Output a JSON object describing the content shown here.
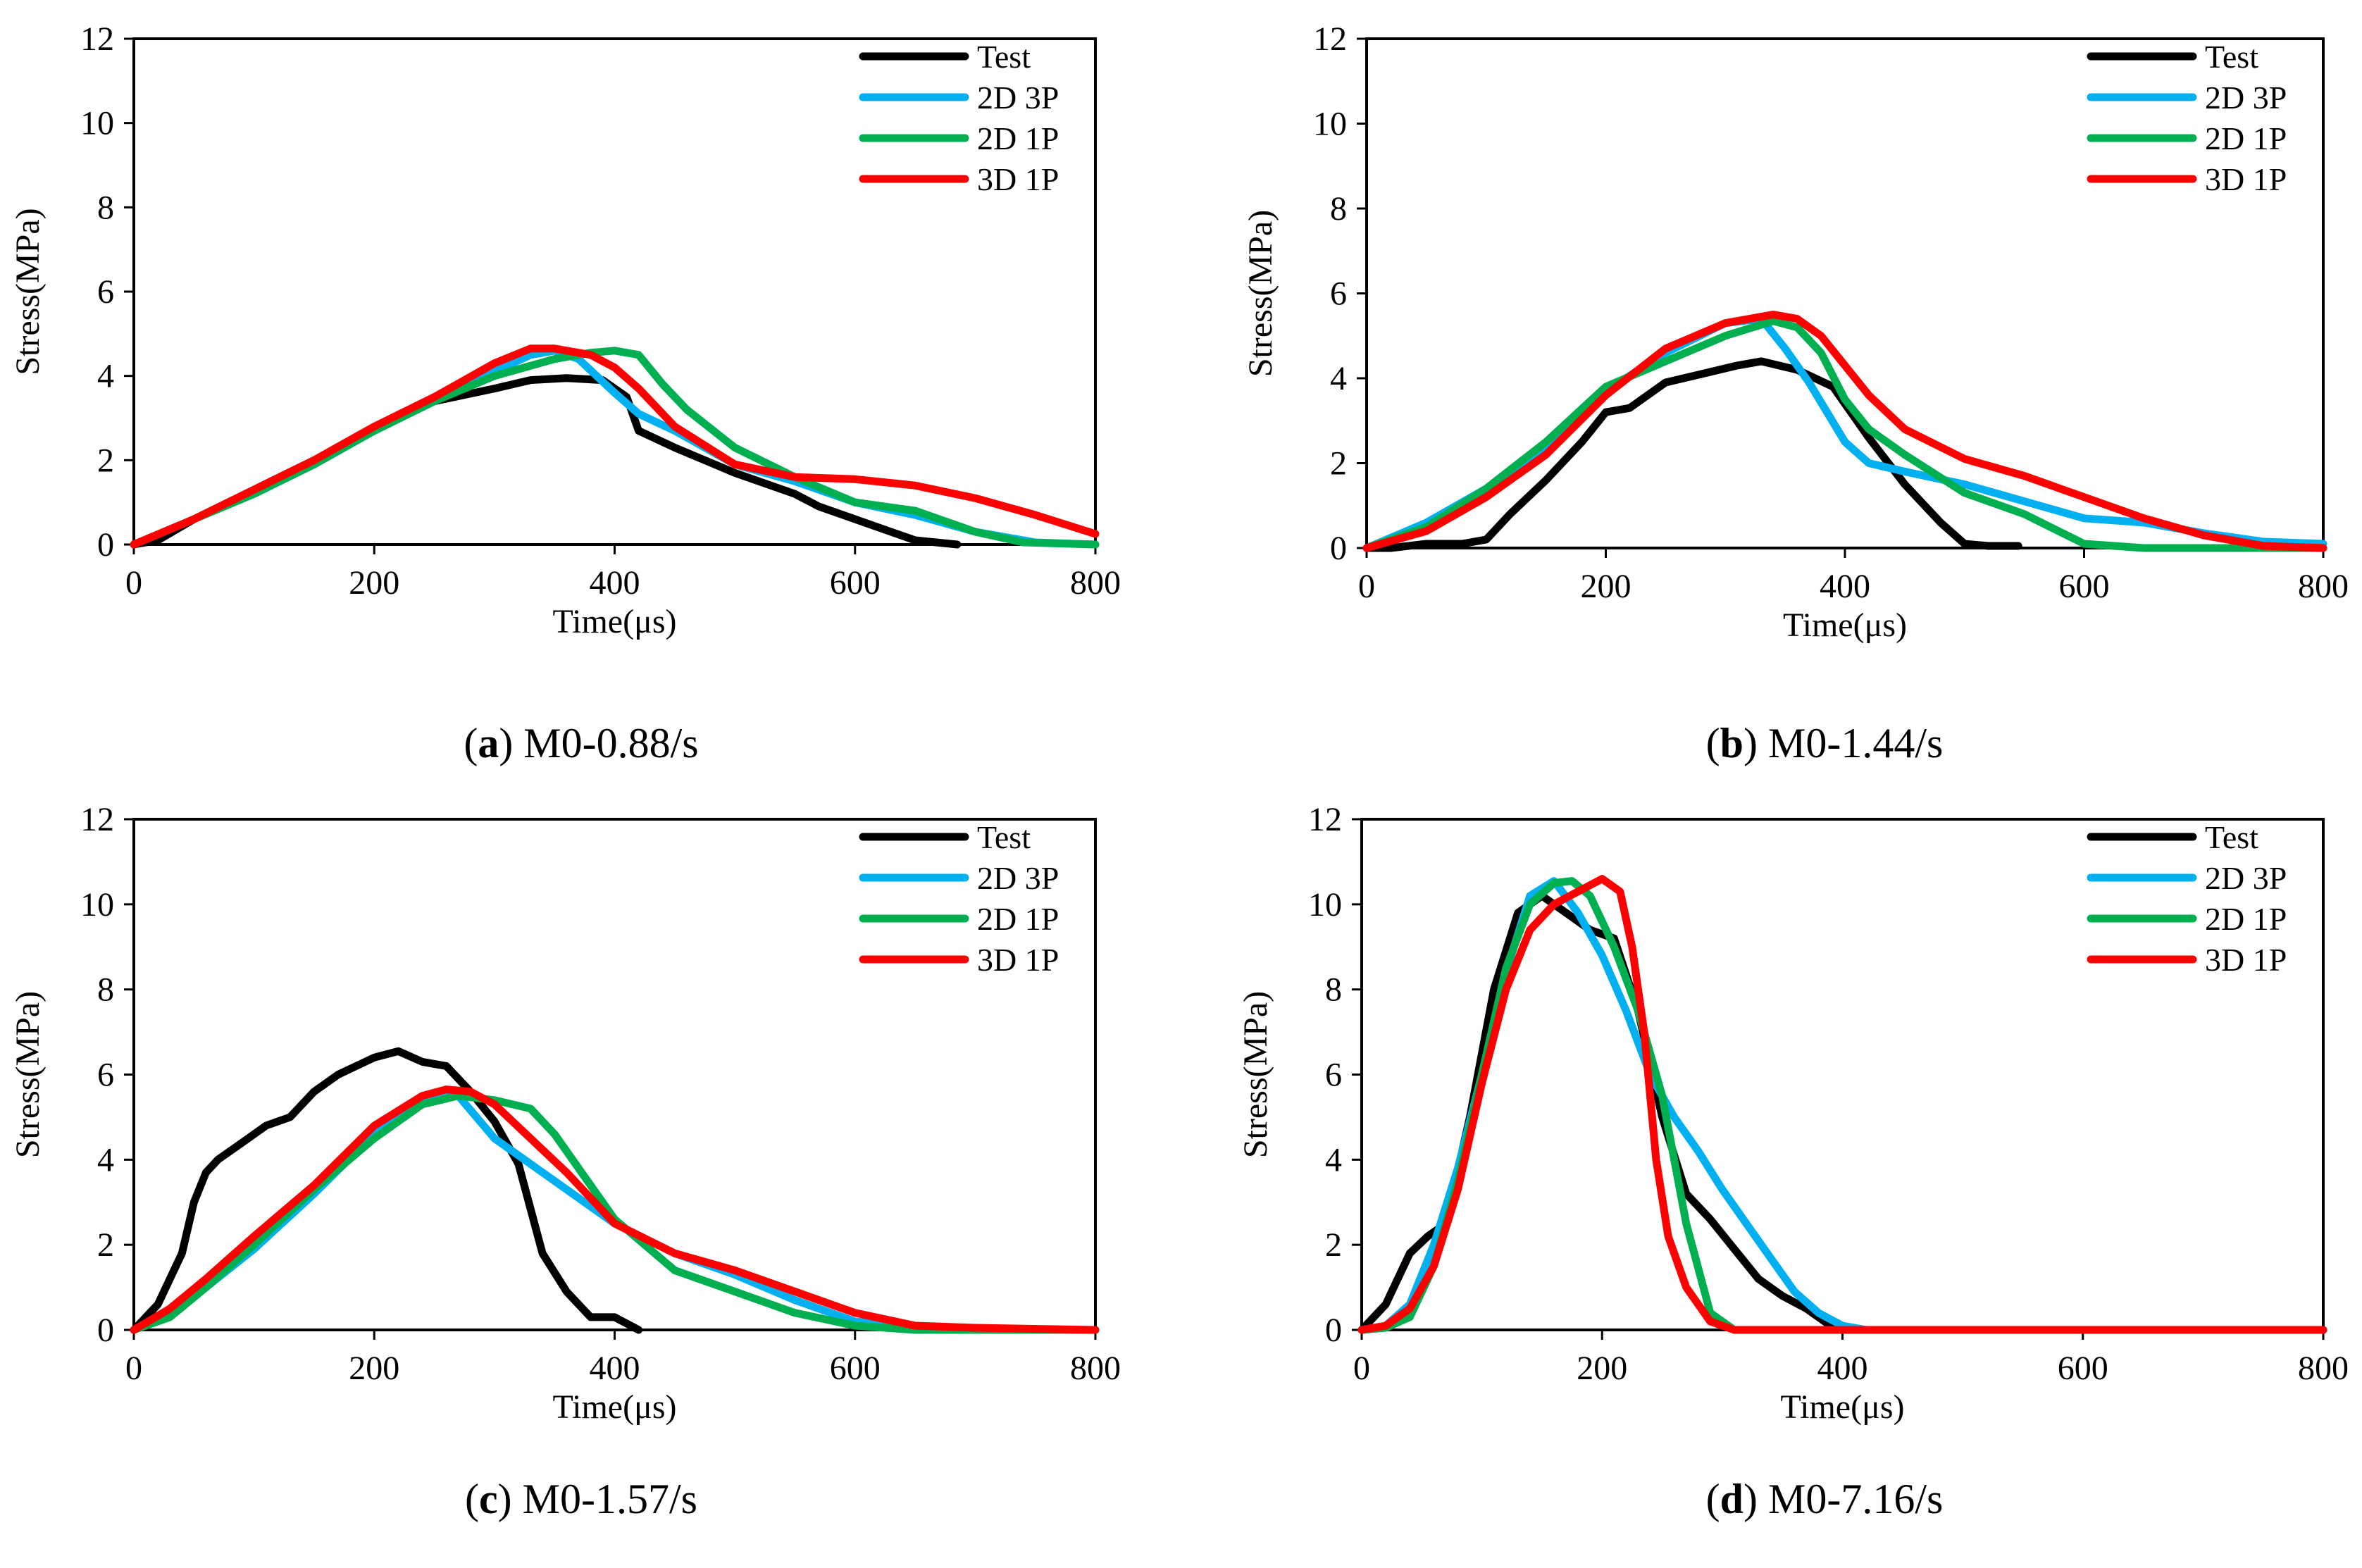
{
  "colors": {
    "Test": "#000000",
    "2D 3P": "#00b0f0",
    "2D 1P": "#00b050",
    "3D 1P": "#ff0000"
  },
  "chart_data": [
    {
      "type": "line",
      "panel_letter": "a",
      "caption_rest": " M0-0.88/s",
      "xlabel": "Time(μs)",
      "ylabel": "Stress(MPa)",
      "xlim": [
        0,
        800
      ],
      "ylim": [
        0,
        12
      ],
      "xticks": [
        0,
        200,
        400,
        600,
        800
      ],
      "yticks": [
        0,
        2,
        4,
        6,
        8,
        10,
        12
      ],
      "legend_position": "top-right",
      "series": [
        {
          "name": "Test",
          "x": [
            0,
            20,
            50,
            100,
            150,
            200,
            250,
            300,
            330,
            360,
            390,
            410,
            420,
            450,
            500,
            550,
            570,
            600,
            650,
            685
          ],
          "y": [
            0,
            0.1,
            0.6,
            1.3,
            2.0,
            2.7,
            3.4,
            3.7,
            3.9,
            3.95,
            3.9,
            3.5,
            2.7,
            2.3,
            1.7,
            1.2,
            0.9,
            0.6,
            0.1,
            0
          ]
        },
        {
          "name": "2D 3P",
          "x": [
            0,
            50,
            100,
            150,
            200,
            250,
            300,
            330,
            350,
            370,
            400,
            420,
            450,
            500,
            550,
            600,
            650,
            700,
            750,
            800
          ],
          "y": [
            0,
            0.6,
            1.2,
            1.9,
            2.7,
            3.4,
            4.1,
            4.5,
            4.6,
            4.4,
            3.6,
            3.1,
            2.7,
            1.9,
            1.5,
            1.0,
            0.7,
            0.3,
            0.05,
            0
          ]
        },
        {
          "name": "2D 1P",
          "x": [
            0,
            50,
            100,
            150,
            200,
            250,
            300,
            350,
            380,
            400,
            420,
            440,
            460,
            500,
            550,
            600,
            650,
            700,
            740,
            800
          ],
          "y": [
            0,
            0.6,
            1.2,
            1.9,
            2.7,
            3.4,
            4.0,
            4.4,
            4.55,
            4.6,
            4.5,
            3.8,
            3.2,
            2.3,
            1.6,
            1.0,
            0.8,
            0.3,
            0.05,
            0
          ]
        },
        {
          "name": "3D 1P",
          "x": [
            0,
            50,
            100,
            150,
            200,
            250,
            300,
            330,
            350,
            380,
            400,
            420,
            450,
            500,
            550,
            600,
            650,
            700,
            750,
            800
          ],
          "y": [
            0,
            0.6,
            1.3,
            2.0,
            2.8,
            3.5,
            4.3,
            4.65,
            4.65,
            4.5,
            4.2,
            3.7,
            2.8,
            1.9,
            1.6,
            1.55,
            1.4,
            1.1,
            0.7,
            0.25
          ]
        }
      ]
    },
    {
      "type": "line",
      "panel_letter": "b",
      "caption_rest": " M0-1.44/s",
      "xlabel": "Time(μs)",
      "ylabel": "Stress(MPa)",
      "xlim": [
        0,
        800
      ],
      "ylim": [
        0,
        12
      ],
      "xticks": [
        0,
        200,
        400,
        600,
        800
      ],
      "yticks": [
        0,
        2,
        4,
        6,
        8,
        10,
        12
      ],
      "legend_position": "top-right",
      "series": [
        {
          "name": "Test",
          "x": [
            0,
            20,
            50,
            80,
            100,
            120,
            150,
            180,
            200,
            220,
            250,
            280,
            310,
            330,
            360,
            390,
            420,
            450,
            480,
            500,
            520,
            545
          ],
          "y": [
            0,
            0,
            0.1,
            0.1,
            0.2,
            0.8,
            1.6,
            2.5,
            3.2,
            3.3,
            3.9,
            4.1,
            4.3,
            4.4,
            4.2,
            3.8,
            2.6,
            1.5,
            0.6,
            0.1,
            0.05,
            0.05
          ]
        },
        {
          "name": "2D 3P",
          "x": [
            0,
            50,
            100,
            150,
            200,
            250,
            300,
            330,
            350,
            370,
            400,
            420,
            450,
            500,
            550,
            600,
            650,
            700,
            750,
            800
          ],
          "y": [
            0,
            0.6,
            1.4,
            2.4,
            3.7,
            4.6,
            5.3,
            5.4,
            4.7,
            3.9,
            2.5,
            2.0,
            1.8,
            1.5,
            1.1,
            0.7,
            0.6,
            0.35,
            0.15,
            0.1
          ]
        },
        {
          "name": "2D 1P",
          "x": [
            0,
            50,
            100,
            150,
            200,
            250,
            300,
            340,
            360,
            380,
            400,
            420,
            450,
            500,
            550,
            600,
            650,
            700,
            750,
            800
          ],
          "y": [
            0,
            0.5,
            1.4,
            2.5,
            3.8,
            4.4,
            5.0,
            5.35,
            5.2,
            4.6,
            3.5,
            2.8,
            2.2,
            1.3,
            0.8,
            0.1,
            0,
            0,
            0,
            0
          ]
        },
        {
          "name": "3D 1P",
          "x": [
            0,
            50,
            100,
            150,
            200,
            250,
            300,
            340,
            360,
            380,
            400,
            420,
            450,
            500,
            550,
            600,
            650,
            700,
            750,
            800
          ],
          "y": [
            0,
            0.4,
            1.2,
            2.2,
            3.6,
            4.7,
            5.3,
            5.5,
            5.4,
            5.0,
            4.3,
            3.6,
            2.8,
            2.1,
            1.7,
            1.2,
            0.7,
            0.3,
            0.05,
            0
          ]
        }
      ]
    },
    {
      "type": "line",
      "panel_letter": "c",
      "caption_rest": " M0-1.57/s",
      "xlabel": "Time(μs)",
      "ylabel": "Stress(MPa)",
      "xlim": [
        0,
        800
      ],
      "ylim": [
        0,
        12
      ],
      "xticks": [
        0,
        200,
        400,
        600,
        800
      ],
      "yticks": [
        0,
        2,
        4,
        6,
        8,
        10,
        12
      ],
      "legend_position": "top-right",
      "series": [
        {
          "name": "Test",
          "x": [
            0,
            20,
            40,
            50,
            60,
            70,
            90,
            110,
            130,
            150,
            170,
            200,
            220,
            240,
            260,
            280,
            300,
            320,
            340,
            360,
            380,
            400,
            420
          ],
          "y": [
            0,
            0.6,
            1.8,
            3.0,
            3.7,
            4.0,
            4.4,
            4.8,
            5.0,
            5.6,
            6.0,
            6.4,
            6.55,
            6.3,
            6.2,
            5.6,
            4.9,
            3.9,
            1.8,
            0.9,
            0.3,
            0.3,
            0
          ]
        },
        {
          "name": "2D 3P",
          "x": [
            0,
            30,
            60,
            100,
            150,
            200,
            240,
            270,
            300,
            330,
            360,
            400,
            450,
            500,
            550,
            600,
            650,
            700,
            750,
            800
          ],
          "y": [
            0,
            0.4,
            1.0,
            1.9,
            3.2,
            4.6,
            5.4,
            5.5,
            4.5,
            3.9,
            3.3,
            2.5,
            1.8,
            1.3,
            0.7,
            0.2,
            0.05,
            0,
            0,
            0
          ]
        },
        {
          "name": "2D 1P",
          "x": [
            0,
            30,
            60,
            100,
            150,
            200,
            240,
            270,
            300,
            330,
            350,
            370,
            400,
            450,
            500,
            550,
            600,
            650,
            700,
            800
          ],
          "y": [
            0,
            0.3,
            1.0,
            2.0,
            3.3,
            4.5,
            5.3,
            5.5,
            5.4,
            5.2,
            4.6,
            3.8,
            2.6,
            1.4,
            0.9,
            0.4,
            0.1,
            0,
            0,
            0
          ]
        },
        {
          "name": "3D 1P",
          "x": [
            0,
            30,
            60,
            100,
            150,
            200,
            240,
            260,
            280,
            300,
            330,
            360,
            400,
            450,
            500,
            550,
            600,
            650,
            700,
            800
          ],
          "y": [
            0,
            0.5,
            1.2,
            2.2,
            3.4,
            4.8,
            5.5,
            5.65,
            5.6,
            5.3,
            4.5,
            3.7,
            2.5,
            1.8,
            1.4,
            0.9,
            0.4,
            0.1,
            0.05,
            0
          ]
        }
      ]
    },
    {
      "type": "line",
      "panel_letter": "d",
      "caption_rest": " M0-7.16/s",
      "xlabel": "Time(μs)",
      "ylabel": "Stress(MPa)",
      "xlim": [
        0,
        800
      ],
      "ylim": [
        0,
        12
      ],
      "xticks": [
        0,
        200,
        400,
        600,
        800
      ],
      "yticks": [
        0,
        2,
        4,
        6,
        8,
        10,
        12
      ],
      "legend_position": "top-right",
      "series": [
        {
          "name": "Test",
          "x": [
            0,
            20,
            40,
            55,
            70,
            90,
            110,
            130,
            150,
            170,
            190,
            210,
            230,
            250,
            270,
            290,
            310,
            330,
            350,
            370,
            390,
            410,
            800
          ],
          "y": [
            0,
            0.6,
            1.8,
            2.2,
            2.5,
            5.0,
            8.0,
            9.8,
            10.2,
            9.8,
            9.4,
            9.2,
            7.5,
            5.0,
            3.2,
            2.6,
            1.9,
            1.2,
            0.8,
            0.5,
            0.1,
            0,
            0
          ]
        },
        {
          "name": "2D 3P",
          "x": [
            0,
            20,
            40,
            60,
            80,
            100,
            120,
            140,
            160,
            180,
            200,
            220,
            240,
            260,
            280,
            300,
            320,
            340,
            360,
            380,
            400,
            420,
            800
          ],
          "y": [
            0,
            0.1,
            0.6,
            2.0,
            3.8,
            6.0,
            8.4,
            10.2,
            10.55,
            9.8,
            8.8,
            7.5,
            6.0,
            5.0,
            4.2,
            3.3,
            2.5,
            1.7,
            0.9,
            0.4,
            0.1,
            0,
            0
          ]
        },
        {
          "name": "2D 1P",
          "x": [
            0,
            20,
            40,
            60,
            80,
            100,
            120,
            140,
            160,
            175,
            190,
            210,
            230,
            250,
            270,
            290,
            310,
            800
          ],
          "y": [
            0,
            0.05,
            0.3,
            1.5,
            3.5,
            6.0,
            8.5,
            10.0,
            10.5,
            10.55,
            10.2,
            9.0,
            7.5,
            5.5,
            2.5,
            0.4,
            0,
            0
          ]
        },
        {
          "name": "3D 1P",
          "x": [
            0,
            20,
            40,
            60,
            80,
            100,
            120,
            140,
            160,
            180,
            200,
            215,
            225,
            235,
            245,
            255,
            270,
            290,
            310,
            800
          ],
          "y": [
            0,
            0.1,
            0.5,
            1.5,
            3.3,
            5.8,
            8.0,
            9.4,
            10.0,
            10.3,
            10.6,
            10.3,
            9.0,
            7.0,
            4.0,
            2.2,
            1.0,
            0.2,
            0,
            0
          ]
        }
      ]
    }
  ]
}
